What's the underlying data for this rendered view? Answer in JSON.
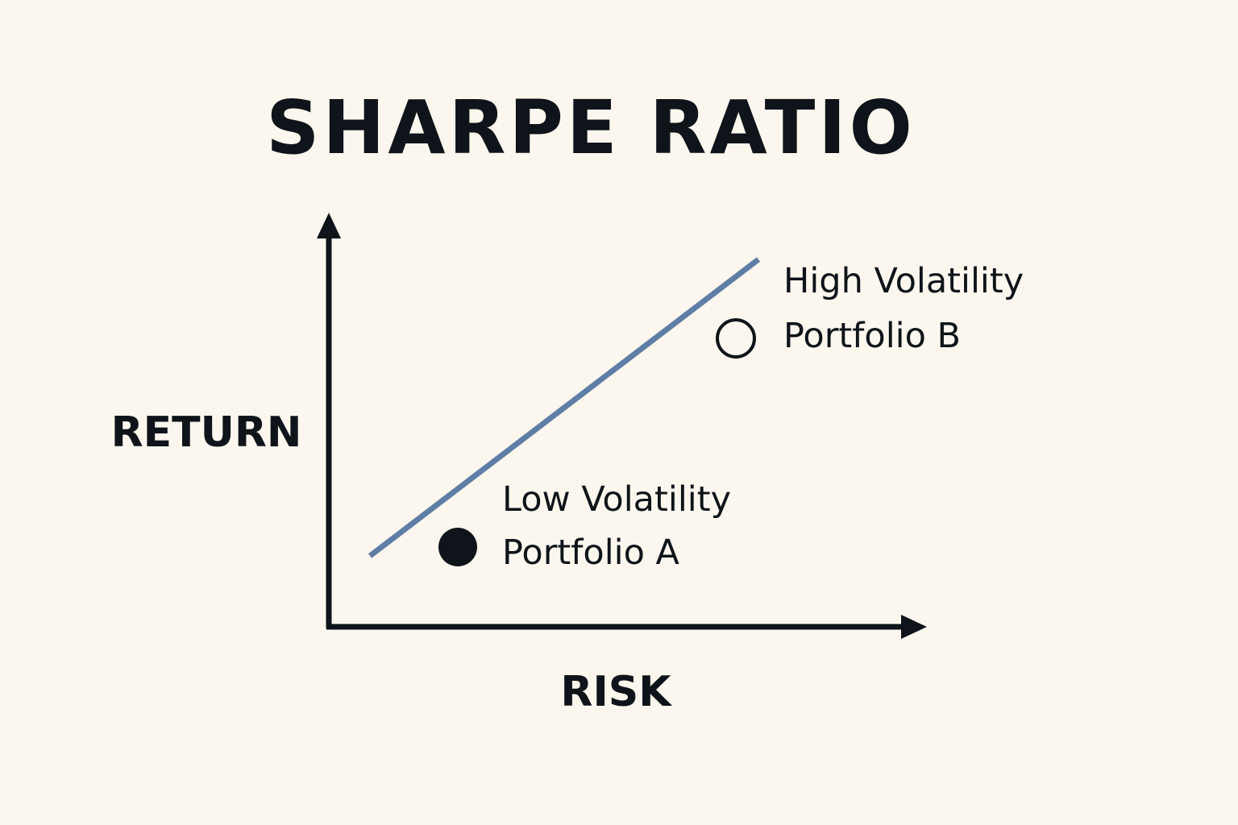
{
  "title": "SHARPE RATIO",
  "axes": {
    "y_label": "RETURN",
    "x_label": "RISK"
  },
  "points": [
    {
      "label_line1": "Low Volatility",
      "label_line2": "Portfolio A",
      "marker": "filled-circle"
    },
    {
      "label_line1": "High Volatility",
      "label_line2": "Portfolio B",
      "marker": "hollow-circle"
    }
  ],
  "colors": {
    "background": "#FBF7EE",
    "ink": "#0F141A",
    "trend_line": "#5F7EA6"
  }
}
